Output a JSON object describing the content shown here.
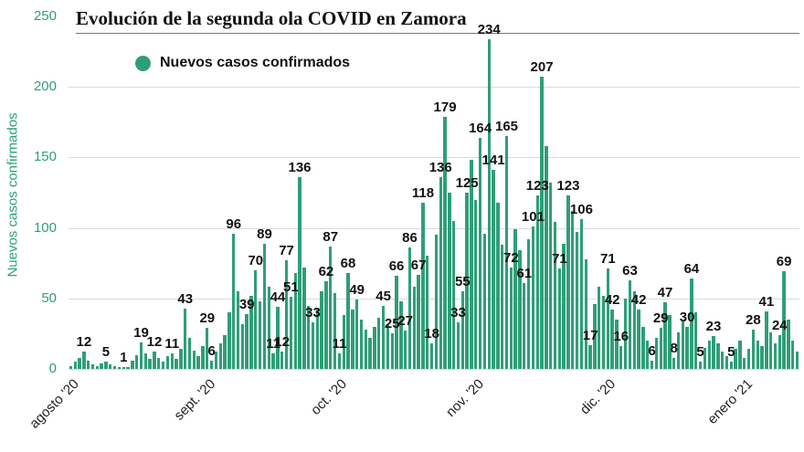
{
  "title": "Evolución de la segunda ola COVID en Zamora",
  "legend": {
    "label": "Nuevos casos confirmados"
  },
  "y_axis_label": "Nuevos casos confirmados",
  "colors": {
    "bar": "#2f9e77",
    "axis_text": "#2aa077",
    "grid": "#d9d9d9",
    "value_label": "#111111"
  },
  "chart_data": {
    "type": "bar",
    "title": "Evolución de la segunda ola COVID en Zamora",
    "xlabel": "",
    "ylabel": "Nuevos casos confirmados",
    "legend": "Nuevos casos confirmados",
    "grid": true,
    "ylim": [
      0,
      250
    ],
    "yticks": [
      0,
      50,
      100,
      150,
      200,
      250
    ],
    "x_tick_labels": [
      "agosto '20",
      "sept. '20",
      "oct. '20",
      "nov. '20",
      "dic. '20",
      "enero '21"
    ],
    "month_start_indices": [
      0,
      31,
      61,
      92,
      122,
      153
    ],
    "values": [
      2,
      5,
      8,
      12,
      6,
      3,
      2,
      4,
      5,
      3,
      2,
      1,
      1,
      1,
      6,
      10,
      19,
      11,
      7,
      12,
      8,
      5,
      9,
      11,
      7,
      14,
      43,
      22,
      13,
      9,
      16,
      29,
      6,
      12,
      18,
      24,
      40,
      96,
      55,
      32,
      39,
      52,
      70,
      48,
      89,
      58,
      11,
      44,
      12,
      77,
      51,
      68,
      136,
      72,
      45,
      33,
      42,
      55,
      62,
      87,
      54,
      11,
      38,
      68,
      42,
      49,
      35,
      28,
      22,
      30,
      36,
      45,
      31,
      25,
      66,
      48,
      27,
      86,
      58,
      67,
      118,
      80,
      18,
      95,
      136,
      179,
      125,
      105,
      33,
      55,
      125,
      148,
      120,
      164,
      96,
      234,
      141,
      118,
      88,
      165,
      72,
      99,
      84,
      61,
      92,
      101,
      123,
      207,
      158,
      132,
      104,
      71,
      89,
      123,
      112,
      97,
      106,
      78,
      17,
      46,
      58,
      52,
      71,
      42,
      35,
      16,
      50,
      63,
      55,
      42,
      30,
      20,
      6,
      22,
      29,
      47,
      38,
      8,
      26,
      34,
      30,
      64,
      40,
      5,
      15,
      20,
      23,
      18,
      12,
      9,
      5,
      14,
      20,
      8,
      14,
      28,
      20,
      16,
      41,
      26,
      18,
      24,
      69,
      35,
      20,
      12
    ],
    "labeled_indices": [
      3,
      8,
      12,
      16,
      19,
      23,
      26,
      31,
      32,
      37,
      40,
      42,
      44,
      46,
      47,
      48,
      49,
      50,
      52,
      55,
      58,
      59,
      61,
      63,
      65,
      71,
      73,
      74,
      76,
      77,
      79,
      80,
      82,
      84,
      85,
      88,
      89,
      90,
      93,
      95,
      96,
      99,
      100,
      103,
      105,
      106,
      107,
      111,
      113,
      116,
      118,
      122,
      123,
      125,
      127,
      129,
      132,
      134,
      135,
      137,
      140,
      141,
      143,
      146,
      150,
      155,
      158,
      161,
      162
    ],
    "labeled_values": [
      12,
      5,
      1,
      19,
      12,
      11,
      43,
      29,
      6,
      96,
      39,
      70,
      89,
      11,
      44,
      12,
      77,
      51,
      136,
      33,
      62,
      87,
      11,
      68,
      49,
      45,
      25,
      66,
      27,
      86,
      67,
      118,
      18,
      136,
      179,
      33,
      55,
      125,
      164,
      234,
      141,
      165,
      72,
      61,
      101,
      123,
      207,
      71,
      123,
      106,
      17,
      71,
      42,
      16,
      63,
      42,
      6,
      29,
      47,
      8,
      30,
      64,
      5,
      23,
      5,
      28,
      41,
      24,
      69
    ]
  }
}
